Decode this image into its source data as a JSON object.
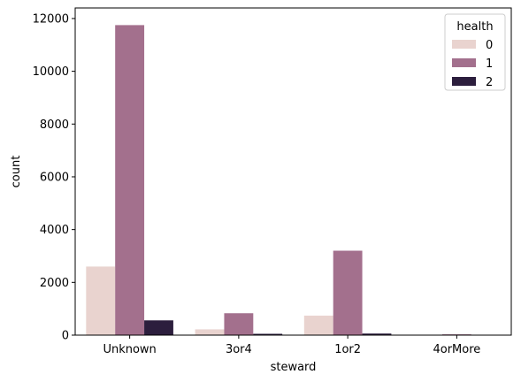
{
  "chart_data": {
    "type": "bar",
    "title": "",
    "xlabel": "steward",
    "ylabel": "count",
    "categories": [
      "Unknown",
      "3or4",
      "1or2",
      "4orMore"
    ],
    "ylim": [
      0,
      12400
    ],
    "yticks": [
      0,
      2000,
      4000,
      6000,
      8000,
      10000,
      12000
    ],
    "grid": false,
    "legend": {
      "title": "health",
      "position": "top-right"
    },
    "series": [
      {
        "name": "0",
        "color": "#e9d3cf",
        "values": [
          2600,
          220,
          740,
          5
        ]
      },
      {
        "name": "1",
        "color": "#a3708d",
        "values": [
          11750,
          830,
          3200,
          30
        ]
      },
      {
        "name": "2",
        "color": "#2c1e3d",
        "values": [
          560,
          50,
          60,
          2
        ]
      }
    ]
  }
}
